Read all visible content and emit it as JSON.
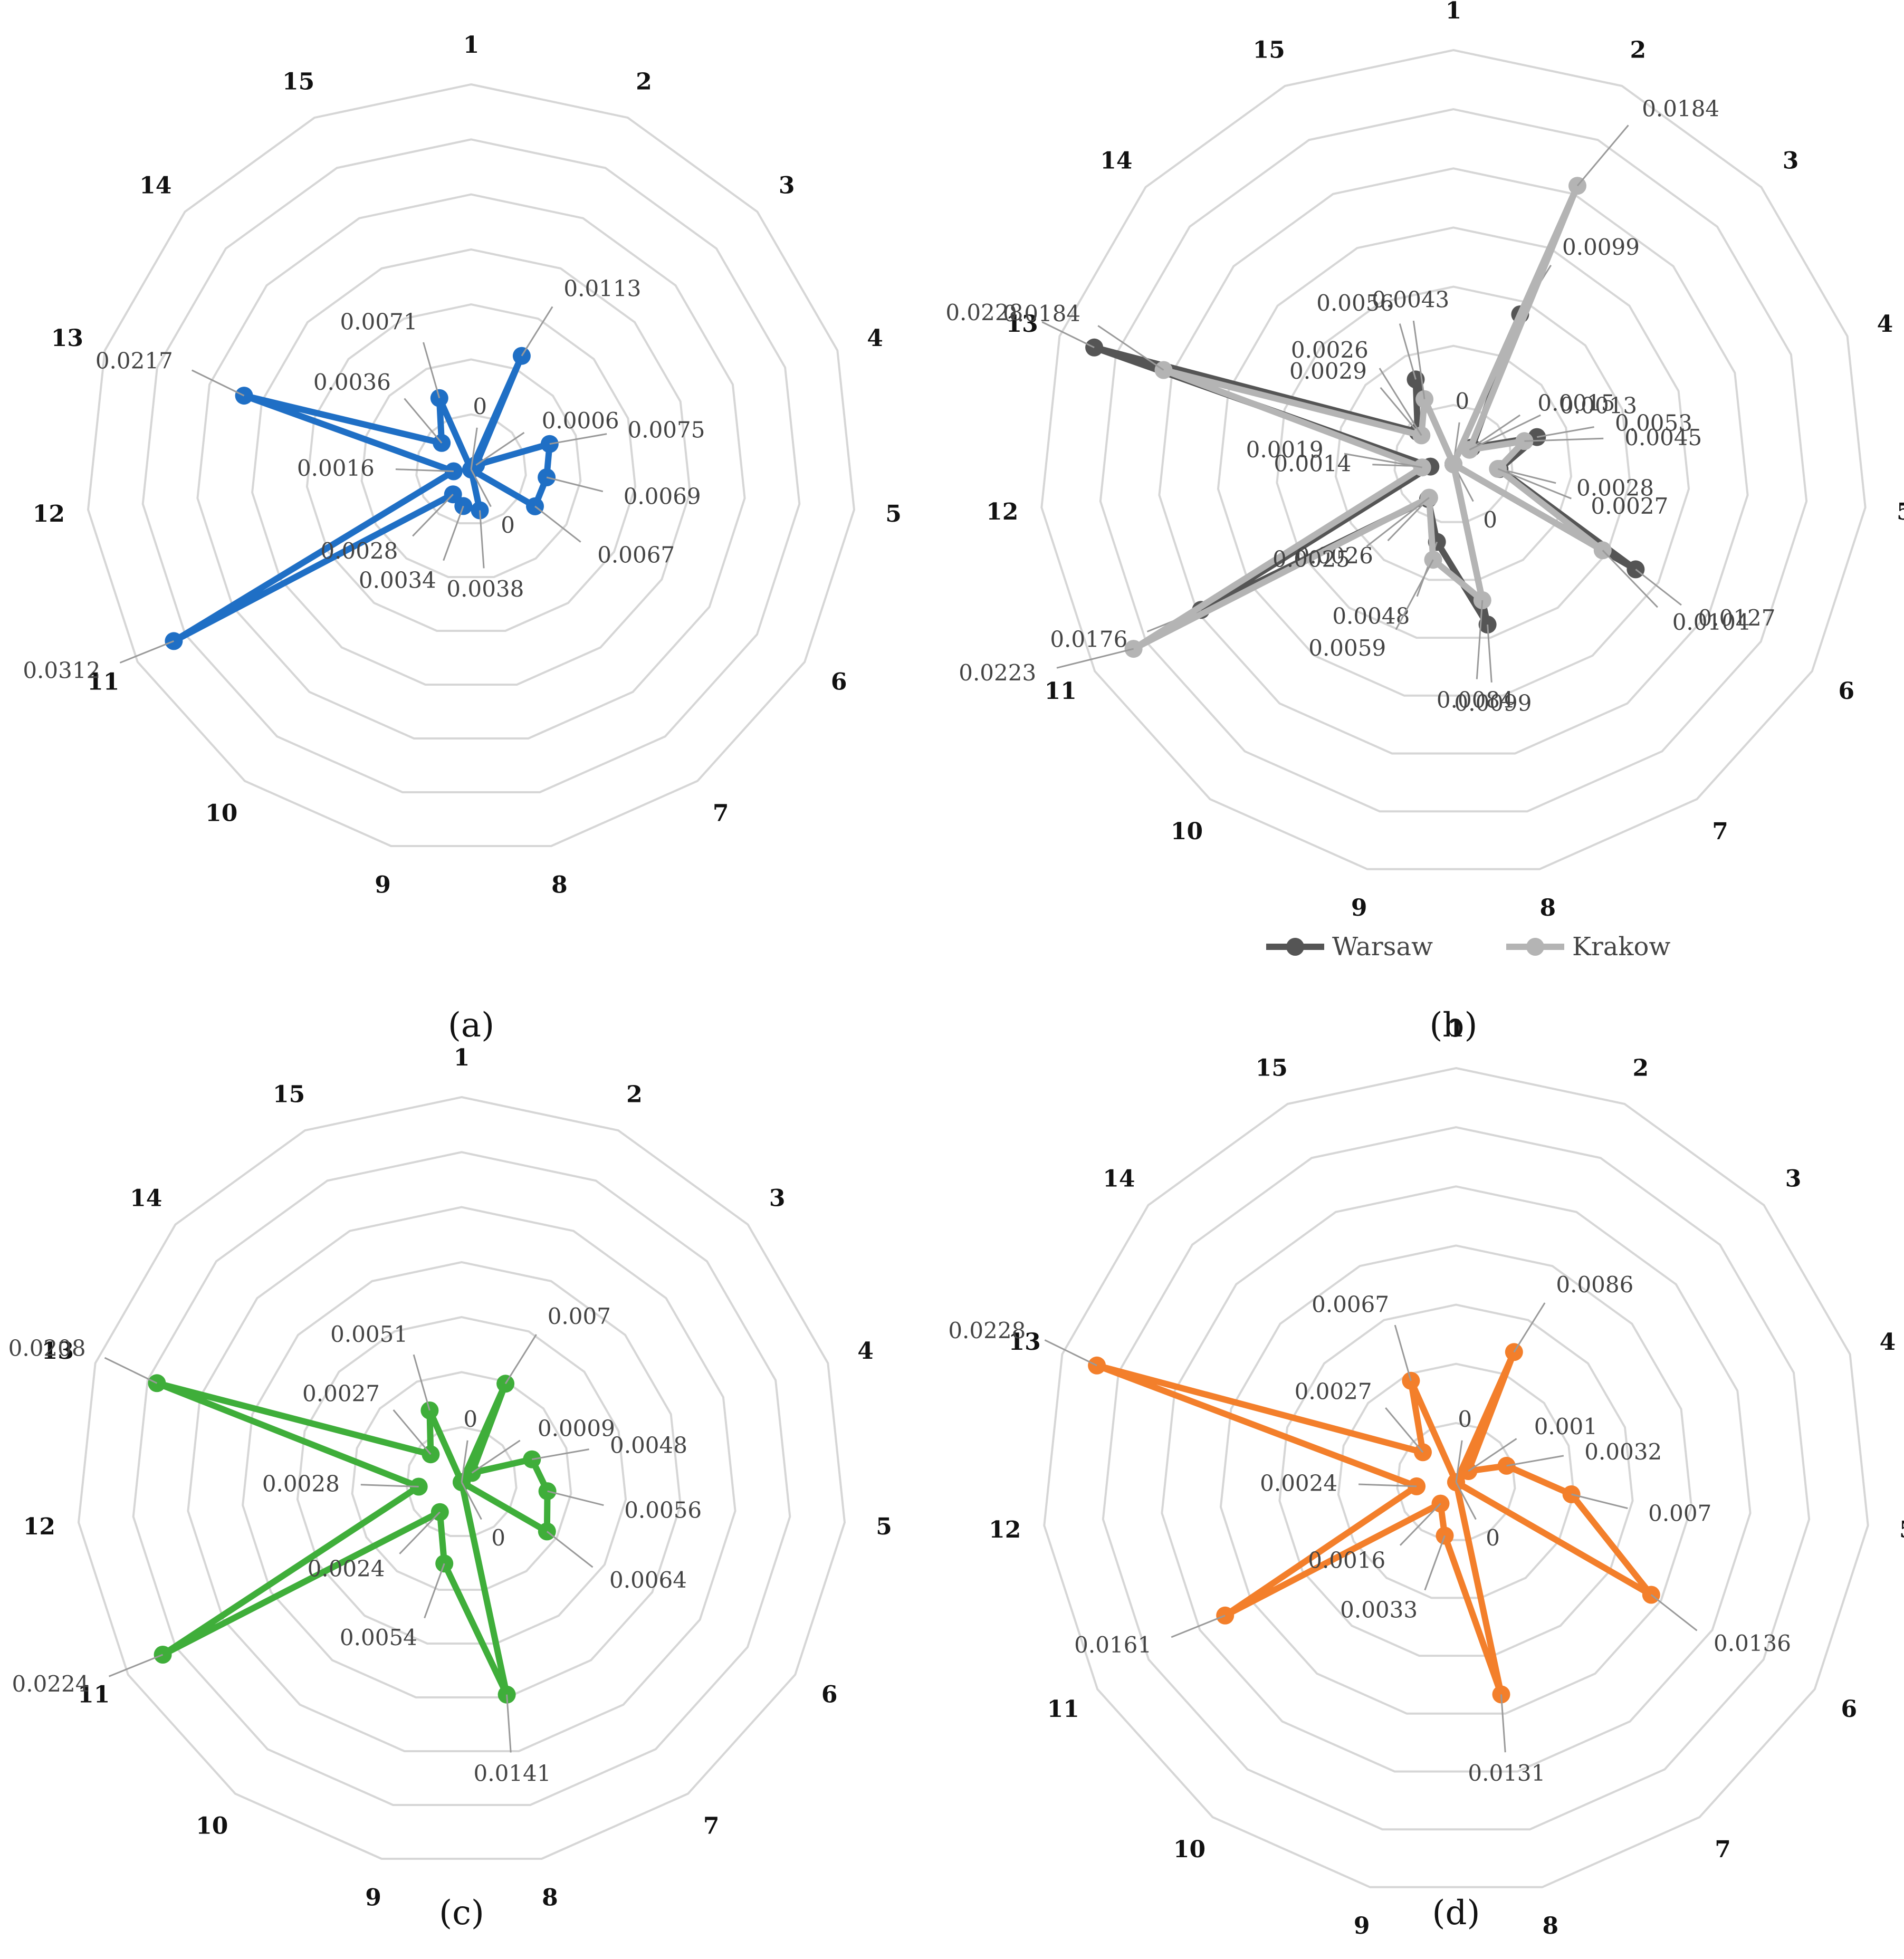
{
  "chart_data": [
    {
      "panel": "(a)",
      "type": "radar",
      "categories": [
        "1",
        "2",
        "3",
        "4",
        "5",
        "6",
        "7",
        "8",
        "9",
        "10",
        "11",
        "12",
        "13",
        "14",
        "15"
      ],
      "rlim": [
        0,
        0.035
      ],
      "grid": true,
      "series": [
        {
          "color": "#1f6fc5",
          "values": [
            0,
            0.0113,
            0.0006,
            0.0075,
            0.0069,
            0.0067,
            0,
            0.0038,
            0.0034,
            0.0028,
            0.0312,
            0.0016,
            0.0217,
            0.0036,
            0.0071
          ],
          "data_labels": [
            "0",
            "0.0113",
            "0.0006",
            "0.0075",
            "0.0069",
            "0.0067",
            "0",
            "0.0038",
            "0.0034",
            "0.0028",
            "0.0312",
            "0.0016",
            "0.0217",
            "0.0036",
            "0.0071"
          ]
        }
      ]
    },
    {
      "panel": "(b)",
      "type": "radar",
      "categories": [
        "1",
        "2",
        "3",
        "4",
        "5",
        "6",
        "7",
        "8",
        "9",
        "10",
        "11",
        "12",
        "13",
        "14",
        "15"
      ],
      "rlim": [
        0,
        0.025
      ],
      "grid": true,
      "legend": "bottom",
      "series": [
        {
          "name": "Warsaw",
          "color": "#555555",
          "values": [
            0,
            0.0099,
            0.0015,
            0.0053,
            0.0028,
            0.0127,
            0,
            0.0099,
            0.0048,
            0.0026,
            0.0176,
            0.0014,
            0.0228,
            0.0029,
            0.0056
          ],
          "data_labels": [
            "0",
            "0.0099",
            "0.0015",
            "0.0053",
            "0.0028",
            "0.0127",
            "0",
            "0.0099",
            "0.0048",
            "0.0026",
            "0.0176",
            "0.0014",
            "0.0228",
            "0.0029",
            "0.0056"
          ]
        },
        {
          "name": "Krakow",
          "color": "#b4b4b4",
          "values": [
            0,
            0.0184,
            0.0013,
            0.0045,
            0.0027,
            0.0104,
            0,
            0.0084,
            0.0059,
            0.0025,
            0.0223,
            0.0019,
            0.0184,
            0.0026,
            0.0043
          ],
          "data_labels": [
            "",
            "0.0184",
            "0.0013",
            "0.0045",
            "0.0027",
            "0.0104",
            "",
            "0.0084",
            "0.0059",
            "0.0025",
            "0.0223",
            "0.0019",
            "0.0184",
            "0.0026",
            "0.0043"
          ]
        }
      ]
    },
    {
      "panel": "(c)",
      "type": "radar",
      "categories": [
        "1",
        "2",
        "3",
        "4",
        "5",
        "6",
        "7",
        "8",
        "9",
        "10",
        "11",
        "12",
        "13",
        "14",
        "15"
      ],
      "rlim": [
        0,
        0.025
      ],
      "grid": true,
      "series": [
        {
          "color": "#3fae3a",
          "values": [
            0,
            0.007,
            0.0009,
            0.0048,
            0.0056,
            0.0064,
            0,
            0.0141,
            0.0054,
            0.0024,
            0.0224,
            0.0028,
            0.0208,
            0.0027,
            0.0051
          ],
          "data_labels": [
            "0",
            "0.007",
            "0.0009",
            "0.0048",
            "0.0056",
            "0.0064",
            "0",
            "0.0141",
            "0.0054",
            "0.0024",
            "0.0224",
            "0.0028",
            "0.0208",
            "0.0027",
            "0.0051"
          ]
        }
      ]
    },
    {
      "panel": "(d)",
      "type": "radar",
      "categories": [
        "1",
        "2",
        "3",
        "4",
        "5",
        "6",
        "7",
        "8",
        "9",
        "10",
        "11",
        "12",
        "13",
        "14",
        "15"
      ],
      "rlim": [
        0,
        0.025
      ],
      "grid": true,
      "series": [
        {
          "color": "#f37f2b",
          "values": [
            0,
            0.0086,
            0.001,
            0.0032,
            0.007,
            0.0136,
            0,
            0.0131,
            0.0033,
            0.0016,
            0.0161,
            0.0024,
            0.0228,
            0.0027,
            0.0067
          ],
          "data_labels": [
            "0",
            "0.0086",
            "0.001",
            "0.0032",
            "0.007",
            "0.0136",
            "0",
            "0.0131",
            "0.0033",
            "0.0016",
            "0.0161",
            "0.0024",
            "0.0228",
            "0.0027",
            "0.0067"
          ]
        }
      ]
    }
  ]
}
